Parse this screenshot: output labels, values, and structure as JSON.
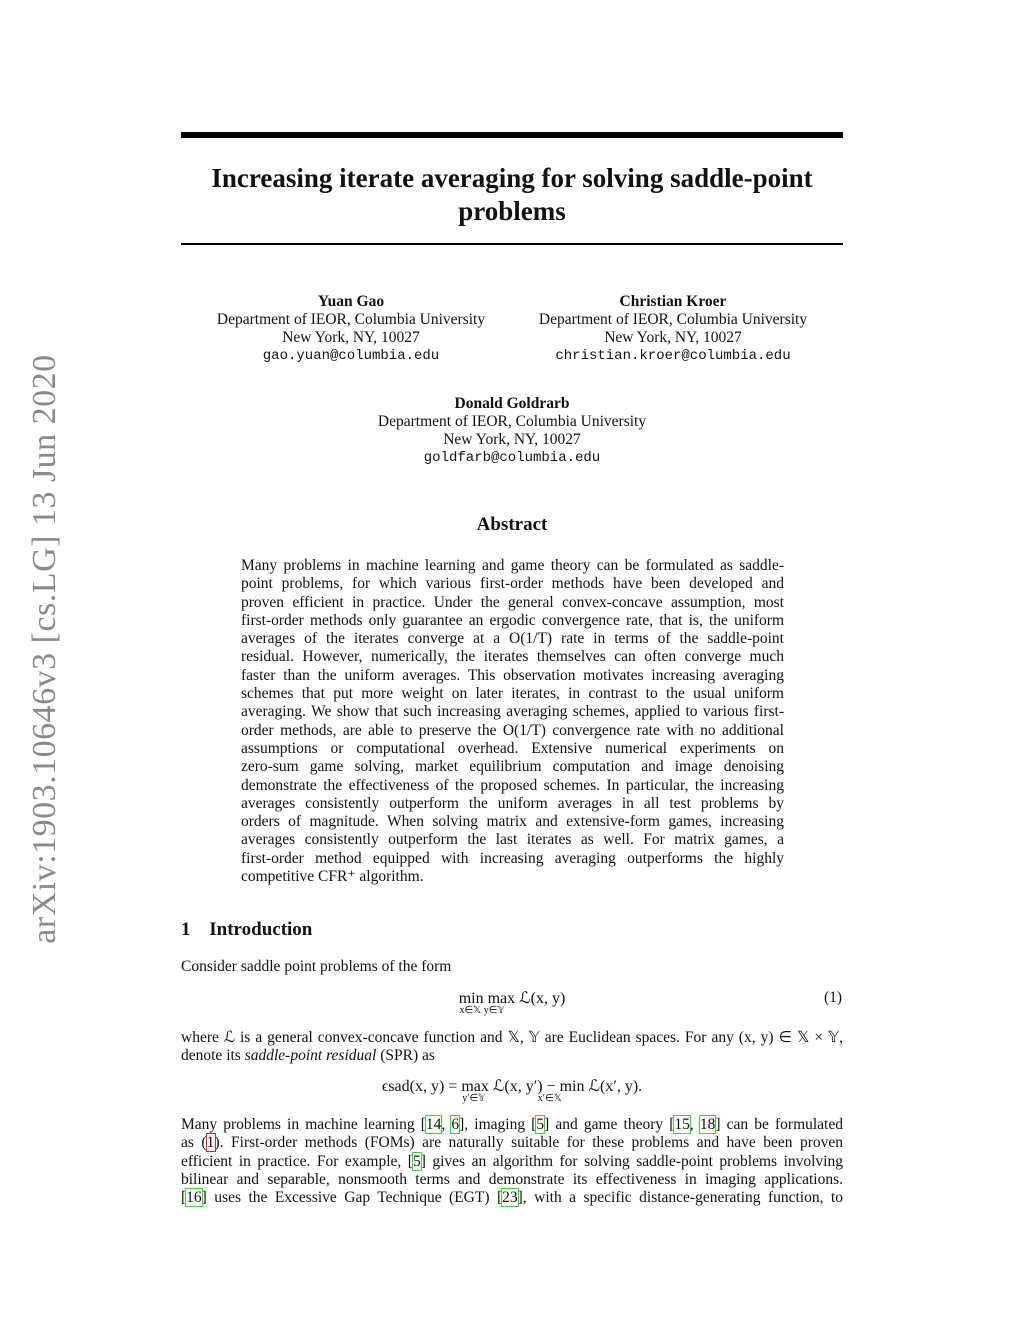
{
  "arxiv_id": "arXiv:1903.10646v3  [cs.LG]  13 Jun 2020",
  "title_lines": [
    "Increasing iterate averaging for solving saddle-point",
    "problems"
  ],
  "authors": [
    {
      "name": "Yuan Gao",
      "affiliation": "Department of IEOR, Columbia University",
      "address": "New York, NY, 10027",
      "email": "gao.yuan@columbia.edu"
    },
    {
      "name": "Christian Kroer",
      "affiliation": "Department of IEOR, Columbia University",
      "address": "New York, NY, 10027",
      "email": "christian.kroer@columbia.edu"
    },
    {
      "name": "Donald Goldrarb",
      "affiliation": "Department of IEOR, Columbia University",
      "address": "New York, NY, 10027",
      "email": "goldfarb@columbia.edu"
    }
  ],
  "abstract": {
    "heading": "Abstract",
    "lines": [
      "Many problems in machine learning and game theory can be formulated as saddle-",
      "point problems, for which various first-order methods have been developed and",
      "proven efficient in practice. Under the general convex-concave assumption, most",
      "first-order methods only guarantee an ergodic convergence rate, that is, the uniform",
      "averages of the iterates converge at a O(1/T) rate in terms of the saddle-point",
      "residual. However, numerically, the iterates themselves can often converge much",
      "faster than the uniform averages. This observation motivates increasing averaging",
      "schemes that put more weight on later iterates, in contrast to the usual uniform",
      "averaging. We show that such increasing averaging schemes, applied to various first-",
      "order methods, are able to preserve the O(1/T) convergence rate with no additional",
      "assumptions or computational overhead. Extensive numerical experiments on",
      "zero-sum game solving, market equilibrium computation and image denoising",
      "demonstrate the effectiveness of the proposed schemes. In particular, the increasing",
      "averages consistently outperform the uniform averages in all test problems by",
      "orders of magnitude. When solving matrix and extensive-form games, increasing",
      "averages consistently outperform the last iterates as well. For matrix games, a",
      "first-order method equipped with increasing averaging outperforms the highly",
      "competitive CFR⁺ algorithm."
    ]
  },
  "section": {
    "number": "1",
    "title": "Introduction"
  },
  "intro": {
    "line1": "Consider saddle point problems of the form",
    "eq1": "min max ℒ(x, y)",
    "eq1_sub": "x∈𝕏   y∈𝕐",
    "eq1_label": "(1)",
    "para2": [
      "where ℒ is a general convex-concave function and 𝕏, 𝕐 are Euclidean spaces. For any (x, y) ∈ 𝕏 × 𝕐,"
    ],
    "para2_last_pre": "denote its ",
    "para2_last_em": "saddle-point residual",
    "para2_last_post": " (SPR) as",
    "eq2": "ϵsad(x, y) = max ℒ(x, y′) − min ℒ(x′, y).",
    "eq2_sub": "y′∈𝕐                     x′∈𝕏",
    "para3": [
      [
        {
          "t": "Many problems in machine learning ["
        },
        {
          "t": "14",
          "c": 1
        },
        {
          "t": ", "
        },
        {
          "t": "6",
          "c": 1
        },
        {
          "t": "], imaging ["
        },
        {
          "t": "5",
          "c": 1
        },
        {
          "t": "] and game theory ["
        },
        {
          "t": "15",
          "c": 1
        },
        {
          "t": ", "
        },
        {
          "t": "18",
          "c": 1
        },
        {
          "t": "] can be formulated"
        }
      ],
      [
        {
          "t": "as ("
        },
        {
          "t": "1",
          "c": 2
        },
        {
          "t": "). First-order methods (FOMs) are naturally suitable for these problems and have been proven"
        }
      ],
      [
        {
          "t": "efficient in practice. For example, ["
        },
        {
          "t": "5",
          "c": 1
        },
        {
          "t": "] gives an algorithm for solving saddle-point problems involving"
        }
      ],
      [
        {
          "t": "bilinear and separable, nonsmooth terms and demonstrate its effectiveness in imaging applications."
        }
      ],
      [
        {
          "t": "["
        },
        {
          "t": "16",
          "c": 1
        },
        {
          "t": "] uses the Excessive Gap Technique (EGT) ["
        },
        {
          "t": "23",
          "c": 1
        },
        {
          "t": "], with a specific distance-generating function, to"
        }
      ]
    ]
  }
}
